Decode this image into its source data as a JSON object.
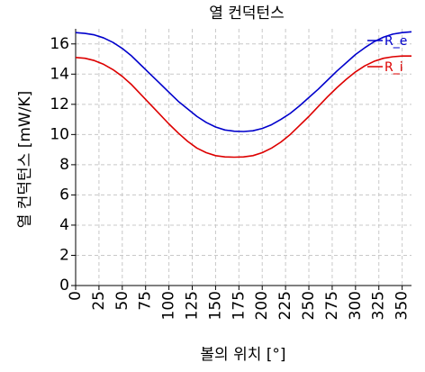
{
  "chart_data": {
    "type": "line",
    "title": "열 컨덕턴스",
    "xlabel": "볼의 위치 [°]",
    "ylabel": "열 컨덕턴스 [mW/K]",
    "xlim": [
      0,
      360
    ],
    "ylim": [
      0,
      17
    ],
    "xticks": [
      0,
      25,
      50,
      75,
      100,
      125,
      150,
      175,
      200,
      225,
      250,
      275,
      300,
      325,
      350
    ],
    "yticks": [
      0,
      2,
      4,
      6,
      8,
      10,
      12,
      14,
      16
    ],
    "grid": true,
    "legend_position": "top-right",
    "series": [
      {
        "name": "R_e",
        "color": "#0000cc",
        "x": [
          0,
          10,
          20,
          30,
          40,
          50,
          60,
          70,
          80,
          90,
          100,
          110,
          120,
          130,
          140,
          150,
          160,
          170,
          180,
          190,
          200,
          210,
          220,
          230,
          240,
          250,
          260,
          270,
          280,
          290,
          300,
          310,
          320,
          330,
          340,
          350,
          360
        ],
        "y": [
          16.75,
          16.7,
          16.6,
          16.4,
          16.1,
          15.7,
          15.2,
          14.6,
          14.0,
          13.4,
          12.8,
          12.2,
          11.7,
          11.2,
          10.8,
          10.5,
          10.3,
          10.22,
          10.2,
          10.25,
          10.4,
          10.65,
          11.0,
          11.4,
          11.9,
          12.45,
          13.0,
          13.6,
          14.2,
          14.75,
          15.3,
          15.75,
          16.15,
          16.45,
          16.65,
          16.75,
          16.8
        ]
      },
      {
        "name": "R_i",
        "color": "#dd0000",
        "x": [
          0,
          10,
          20,
          30,
          40,
          50,
          60,
          70,
          80,
          90,
          100,
          110,
          120,
          130,
          140,
          150,
          160,
          170,
          180,
          190,
          200,
          210,
          220,
          230,
          240,
          250,
          260,
          270,
          280,
          290,
          300,
          310,
          320,
          330,
          340,
          350,
          360
        ],
        "y": [
          15.1,
          15.05,
          14.9,
          14.65,
          14.3,
          13.85,
          13.3,
          12.65,
          12.0,
          11.35,
          10.7,
          10.1,
          9.55,
          9.1,
          8.8,
          8.6,
          8.52,
          8.5,
          8.52,
          8.6,
          8.8,
          9.1,
          9.5,
          10.0,
          10.6,
          11.2,
          11.85,
          12.5,
          13.1,
          13.65,
          14.15,
          14.55,
          14.85,
          15.05,
          15.15,
          15.2,
          15.2
        ]
      }
    ]
  }
}
